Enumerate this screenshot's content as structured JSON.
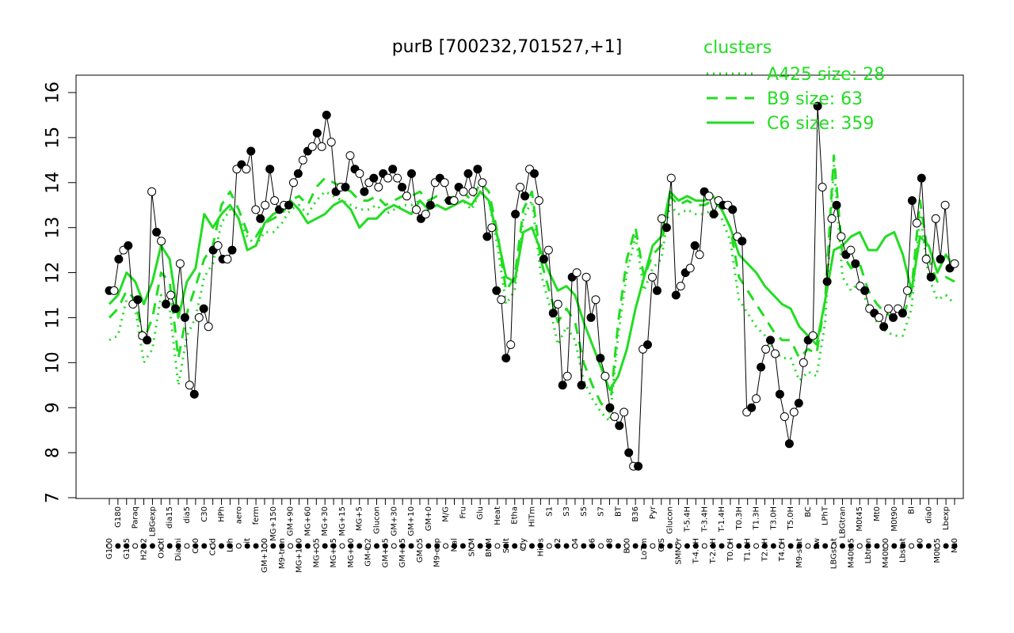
{
  "chart_data": {
    "type": "line",
    "title": "purB [700232,701527,+1]",
    "xlabel": "",
    "ylabel": "",
    "ylim": [
      7,
      16
    ],
    "y_ticks": [
      7,
      8,
      9,
      10,
      11,
      12,
      13,
      14,
      15,
      16
    ],
    "x_tick_labels": [
      "G150",
      "G180",
      "G135",
      "Paraq",
      "H2O2",
      "LBGexp",
      "Oxctl",
      "dia15",
      "Diami",
      "dia5",
      "C90",
      "C30",
      "Cold",
      "HPh",
      "LPh",
      "aero",
      "nit",
      "ferm",
      "GM+150",
      "MG+150",
      "M9-tran",
      "GM+90",
      "MG+120",
      "MG+60",
      "MG+45",
      "MG+30",
      "MG+25",
      "MG+15",
      "MG+10",
      "MG+5",
      "GM-0.2",
      "Glucon",
      "GM+45",
      "GM+30",
      "GM+15",
      "GM+10",
      "GM+5",
      "GM+0",
      "M9-exp",
      "M/G",
      "Mal",
      "Fru",
      "SMM",
      "Glu",
      "BMM",
      "Heat",
      "Salt",
      "Etha",
      "Gly",
      "HiTm",
      "HiOs",
      "S1",
      "S2",
      "S3",
      "S4",
      "S5",
      "S6",
      "S7",
      "S8",
      "BT",
      "B60",
      "B36",
      "LoTm",
      "Pyr",
      "G/S",
      "Glucon",
      "SMMPr",
      "T-5.4H",
      "T-4.4H",
      "T-3.4H",
      "T-2.4H",
      "T-1.4H",
      "T0.0H",
      "T0.3H",
      "T1.0H",
      "T1.3H",
      "T2.0H",
      "T3.0H",
      "T4.0H",
      "T5.0H",
      "M9-stat",
      "BC",
      "Sw",
      "LPhT",
      "LBGstat",
      "LBGtran",
      "M40t45",
      "M0t45",
      "Lbtran",
      "Mt0",
      "M40t90",
      "M0t90",
      "Lbstat",
      "BI",
      "S0",
      "dia0",
      "M0t45",
      "Lbexp",
      "Mt0"
    ],
    "series": [
      {
        "name": "A425 size: 28",
        "style": "dotted",
        "color": "#22dd22",
        "values": [
          10.5,
          10.6,
          11.4,
          11.2,
          10.0,
          10.3,
          11.5,
          11.2,
          9.5,
          10.6,
          11.0,
          11.9,
          12.2,
          13.1,
          13.4,
          13.2,
          12.8,
          12.6,
          12.9,
          12.9,
          13.1,
          13.4,
          13.5,
          13.3,
          13.6,
          13.8,
          13.7,
          13.6,
          13.5,
          13.4,
          13.4,
          13.5,
          13.3,
          13.4,
          13.5,
          13.5,
          13.6,
          13.4,
          13.5,
          13.4,
          13.5,
          13.6,
          13.4,
          13.8,
          13.6,
          12.6,
          11.3,
          11.6,
          13.2,
          13.6,
          12.0,
          11.3,
          10.4,
          10.8,
          10.5,
          9.6,
          9.2,
          8.9,
          8.7,
          10.6,
          12.0,
          12.8,
          11.6,
          12.1,
          12.3,
          13.5,
          13.3,
          13.4,
          13.3,
          13.3,
          13.4,
          13.2,
          12.7,
          11.4,
          11.1,
          10.8,
          10.6,
          10.3,
          10.1,
          10.1,
          9.6,
          9.8,
          9.7,
          10.9,
          14.4,
          11.9,
          11.6,
          11.8,
          11.2,
          10.9,
          10.7,
          10.6,
          10.6,
          11.2,
          13.3,
          11.9,
          11.4,
          11.5,
          11.3
        ],
        "legend": "A425 size: 28"
      },
      {
        "name": "B9 size: 63",
        "style": "dashed",
        "color": "#22dd22",
        "values": [
          11.0,
          11.2,
          11.6,
          11.4,
          10.5,
          11.0,
          12.0,
          11.8,
          10.1,
          11.1,
          11.7,
          12.3,
          12.6,
          13.5,
          13.8,
          13.4,
          12.9,
          12.8,
          13.1,
          13.2,
          13.3,
          13.6,
          13.7,
          13.5,
          13.9,
          14.1,
          14.0,
          13.9,
          13.8,
          13.6,
          13.6,
          13.7,
          13.5,
          13.6,
          13.7,
          13.7,
          13.8,
          13.6,
          13.7,
          13.6,
          13.7,
          13.8,
          13.6,
          14.0,
          13.8,
          12.9,
          11.6,
          11.9,
          13.4,
          13.8,
          12.3,
          11.6,
          10.9,
          11.2,
          10.9,
          10.0,
          9.5,
          9.1,
          8.9,
          10.9,
          12.3,
          13.0,
          11.9,
          12.4,
          12.6,
          13.7,
          13.5,
          13.6,
          13.5,
          13.5,
          13.6,
          13.4,
          13.0,
          11.9,
          11.6,
          11.3,
          11.0,
          10.7,
          10.5,
          10.5,
          10.1,
          10.3,
          10.2,
          11.4,
          14.6,
          12.4,
          12.1,
          12.2,
          11.6,
          11.3,
          11.1,
          11.0,
          11.0,
          11.6,
          13.6,
          12.3,
          11.8,
          11.9,
          11.8
        ]
      },
      {
        "name": "C6 size: 359",
        "style": "solid",
        "color": "#22dd22",
        "values": [
          11.3,
          11.5,
          12.0,
          11.8,
          11.3,
          11.8,
          12.6,
          12.3,
          11.0,
          11.8,
          12.1,
          13.3,
          13.0,
          13.3,
          13.5,
          13.2,
          12.5,
          12.6,
          13.1,
          13.3,
          13.4,
          13.6,
          13.4,
          13.1,
          13.2,
          13.3,
          13.5,
          13.6,
          13.4,
          13.0,
          13.2,
          13.2,
          13.4,
          13.5,
          13.4,
          13.3,
          13.6,
          13.4,
          13.5,
          13.4,
          13.5,
          13.6,
          13.5,
          13.8,
          13.6,
          12.8,
          11.9,
          11.8,
          12.9,
          13.0,
          12.5,
          12.0,
          11.6,
          11.7,
          11.5,
          10.9,
          10.4,
          9.9,
          9.4,
          9.7,
          10.3,
          11.2,
          11.9,
          12.6,
          12.8,
          13.8,
          13.6,
          13.7,
          13.6,
          13.6,
          13.7,
          13.4,
          13.0,
          12.4,
          12.2,
          12.0,
          11.7,
          11.5,
          11.3,
          11.2,
          10.8,
          10.6,
          10.4,
          11.4,
          12.5,
          12.6,
          12.8,
          12.9,
          12.5,
          12.5,
          12.8,
          12.9,
          12.4,
          11.6,
          12.8,
          12.6,
          12.0,
          12.4,
          12.1
        ]
      }
    ],
    "points": [
      11.6,
      11.6,
      12.3,
      12.5,
      12.6,
      11.3,
      11.4,
      10.6,
      10.5,
      13.8,
      12.9,
      12.7,
      11.3,
      11.5,
      11.2,
      12.2,
      11.0,
      9.5,
      9.3,
      11.0,
      11.2,
      10.8,
      12.5,
      12.6,
      12.3,
      12.3,
      12.5,
      14.3,
      14.4,
      14.3,
      14.7,
      13.4,
      13.2,
      13.5,
      14.3,
      13.6,
      13.4,
      13.5,
      13.5,
      14.0,
      14.2,
      14.5,
      14.7,
      14.8,
      15.1,
      14.8,
      15.5,
      14.9,
      13.8,
      13.9,
      13.9,
      14.6,
      14.3,
      14.2,
      13.8,
      14.0,
      14.1,
      13.9,
      14.2,
      14.1,
      14.3,
      14.1,
      13.9,
      13.7,
      14.2,
      13.4,
      13.2,
      13.3,
      13.5,
      14.0,
      14.1,
      14.0,
      13.6,
      13.6,
      13.9,
      13.8,
      14.2,
      13.8,
      14.3,
      14.0,
      12.8,
      13.0,
      11.6,
      11.4,
      10.1,
      10.4,
      13.3,
      13.9,
      13.7,
      14.3,
      14.2,
      13.6,
      12.3,
      12.5,
      11.1,
      11.3,
      9.5,
      9.7,
      11.9,
      12.0,
      9.5,
      11.9,
      11.0,
      11.4,
      10.1,
      9.7,
      9.0,
      8.8,
      8.6,
      8.9,
      8.0,
      7.7,
      7.7,
      10.3,
      10.4,
      11.9,
      11.6,
      13.2,
      13.0,
      14.1,
      11.5,
      11.7,
      12.0,
      12.1,
      12.6,
      12.4,
      13.8,
      13.7,
      13.3,
      13.6,
      13.5,
      13.5,
      13.4,
      12.8,
      12.7,
      8.9,
      9.0,
      9.2,
      9.9,
      10.3,
      10.5,
      10.2,
      9.3,
      8.8,
      8.2,
      8.9,
      9.1,
      10.0,
      10.5,
      10.6,
      15.7,
      13.9,
      11.8,
      13.2,
      13.5,
      12.8,
      12.4,
      12.5,
      12.2,
      11.7,
      11.6,
      11.2,
      11.1,
      11.0,
      10.8,
      11.2,
      11.0,
      11.2,
      11.1,
      11.6,
      13.6,
      13.1,
      14.1,
      12.3,
      11.9,
      13.2,
      12.3,
      13.5,
      12.1,
      12.2
    ]
  }
}
